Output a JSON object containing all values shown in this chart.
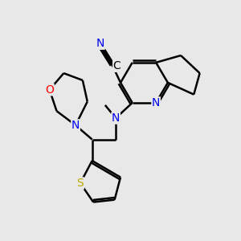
{
  "bg_color": "#e8e8e8",
  "atom_colors": {
    "N": "#0000ee",
    "O": "#ff0000",
    "S": "#bbaa00",
    "C": "#000000"
  },
  "bond_color": "#000000",
  "bond_width": 1.8,
  "font_size_atom": 10
}
